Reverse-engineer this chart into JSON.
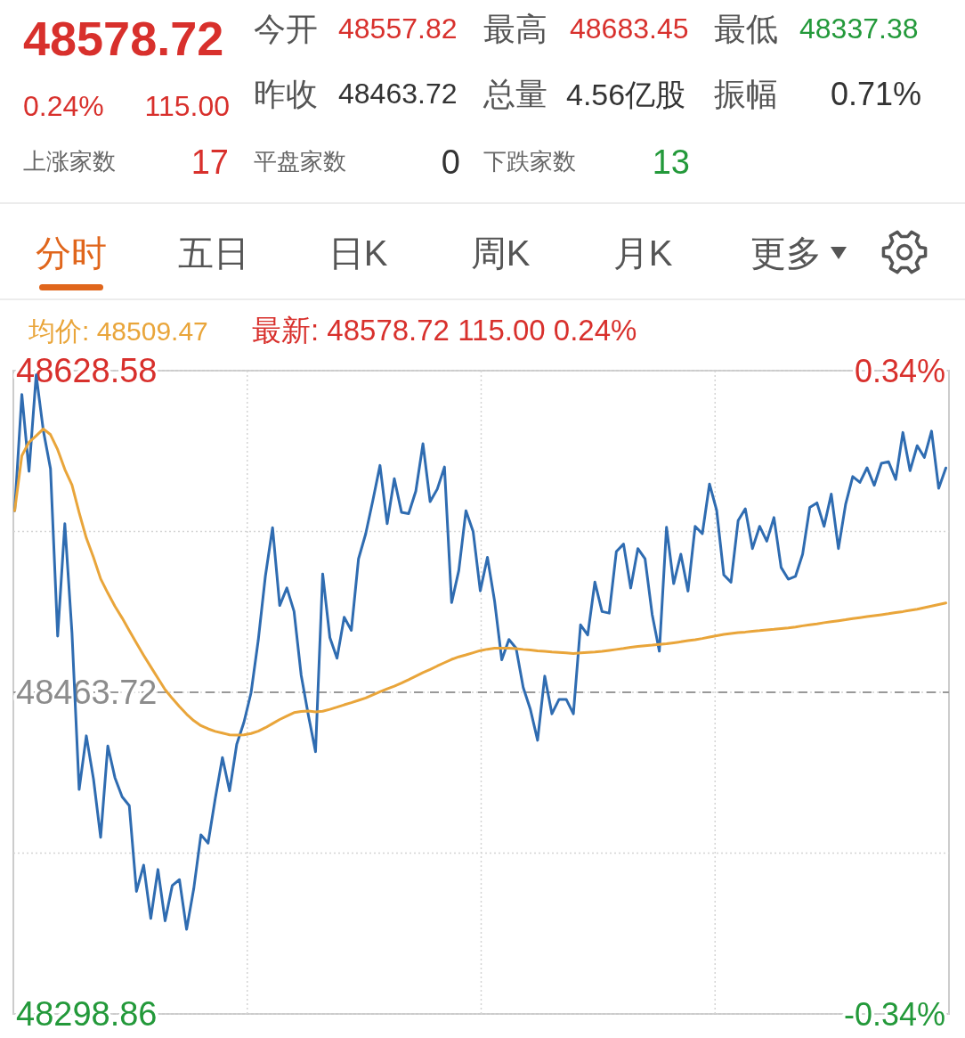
{
  "chart_data": [
    {
      "type": "other",
      "title": "48578.72",
      "annotations": [
        "0.24%",
        "115.00",
        "今开",
        "48557.82",
        "最高",
        "48683.45",
        "最低",
        "48337.38",
        "昨收",
        "48463.72",
        "总量",
        "4.56亿股",
        "振幅",
        "0.71%",
        "上涨家数",
        "17",
        "平盘家数",
        "0",
        "下跌家数",
        "13",
        "分时",
        "五日",
        "日K",
        "周K",
        "月K",
        "更多"
      ]
    },
    {
      "type": "line",
      "categories": [
        null,
        null,
        null,
        null,
        null,
        null,
        null,
        null,
        null,
        null,
        null,
        null,
        null,
        null,
        null,
        null,
        null,
        null,
        null,
        null,
        null,
        null,
        null,
        null,
        null,
        null,
        null,
        null,
        null,
        null,
        null,
        null,
        null,
        null,
        null,
        null,
        null,
        null,
        null,
        null,
        null,
        null,
        null,
        null,
        null,
        null,
        null,
        null,
        null,
        null,
        null,
        null,
        null,
        null,
        null,
        null,
        null,
        null,
        null,
        null,
        null,
        null,
        null,
        null,
        null,
        null,
        null,
        null,
        null,
        null,
        null,
        null,
        null,
        null,
        null,
        null,
        null,
        null,
        null,
        null,
        null,
        null,
        null,
        null,
        null,
        null,
        null,
        null,
        null,
        null,
        null,
        null,
        null,
        null,
        null,
        null,
        null,
        null,
        null,
        null,
        null,
        null,
        null,
        null,
        null,
        null,
        null,
        null,
        null,
        null,
        null,
        null,
        null,
        null,
        null,
        null,
        null,
        null,
        null,
        null,
        null,
        null,
        null,
        null,
        null,
        null,
        null,
        null,
        null,
        null,
        null
      ],
      "ylim": [
        48298.86,
        48628.58
      ],
      "yticks": [
        48298.86,
        {
          "value": 48381.29,
          "label": null
        },
        48463.72,
        {
          "value": 48546.15,
          "label": null
        },
        48628.58
      ],
      "y2lim": [
        -0.34,
        0.34
      ],
      "y2ticks": [
        {
          "value": -0.34,
          "label": "-0.34%"
        },
        {
          "value": 0.34,
          "label": "0.34%"
        }
      ],
      "tick_labels": "y",
      "grid": true,
      "ref_lines": [
        {
          "axis": "y",
          "value": 48463.72,
          "color": "#999999",
          "line_style": "dashed"
        }
      ],
      "annotations": [
        "最新: 48578.72 115.00 0.24%"
      ],
      "series": [
        {
          "color": "#2f6cb1",
          "values": [
            48556.8,
            48616.4,
            48577.0,
            48626.4,
            48597.8,
            48578.3,
            48492.5,
            48550.1,
            48494.0,
            48413.9,
            48441.4,
            48419.3,
            48389.4,
            48436.2,
            48419.9,
            48410.2,
            48405.6,
            48361.7,
            48375.1,
            48347.8,
            48372.9,
            48346.6,
            48364.7,
            48367.7,
            48342.2,
            48363.1,
            48390.7,
            48386.4,
            48409.3,
            48430.3,
            48413.2,
            48437.1,
            48448.3,
            48463.5,
            48490.3,
            48523.3,
            48548.1,
            48508.2,
            48517.2,
            48505.2,
            48472.4,
            48452.0,
            48433.3,
            48524.4,
            48491.8,
            48481.2,
            48502.2,
            48495.5,
            48532.1,
            48544.9,
            48562.0,
            48580.0,
            48550.1,
            48573.2,
            48556.0,
            48555.3,
            48566.8,
            48591.1,
            48561.4,
            48567.9,
            48579.2,
            48509.7,
            48526.1,
            48556.8,
            48546.2,
            48515.7,
            48532.9,
            48510.4,
            48480.4,
            48490.8,
            48486.3,
            48466.1,
            48454.9,
            48439.1,
            48472.0,
            48452.7,
            48460.1,
            48460.1,
            48452.7,
            48498.3,
            48493.1,
            48520.2,
            48505.1,
            48504.3,
            48535.9,
            48539.7,
            48517.2,
            48537.4,
            48532.2,
            48503.6,
            48484.8,
            48548.3,
            48519.4,
            48534.5,
            48515.6,
            48548.8,
            48545.0,
            48570.5,
            48557.0,
            48523.9,
            48520.2,
            48551.7,
            48557.8,
            48537.4,
            48548.8,
            48541.2,
            48553.3,
            48527.7,
            48521.7,
            48523.1,
            48534.5,
            48558.5,
            48560.8,
            48548.8,
            48565.3,
            48537.4,
            48560.0,
            48574.3,
            48571.3,
            48578.8,
            48569.8,
            48581.1,
            48581.9,
            48572.8,
            48596.9,
            48577.3,
            48590.1,
            48584.1,
            48597.6,
            48568.3,
            48578.72
          ]
        },
        {
          "name": "均价: 48509.47",
          "color": "#e9a53a",
          "values": [
            48556.8,
            48585.0,
            48591.9,
            48595.2,
            48598.7,
            48595.8,
            48588.1,
            48578.0,
            48569.9,
            48555.8,
            48542.8,
            48532.9,
            48521.9,
            48514.6,
            48507.8,
            48501.8,
            48495.4,
            48488.9,
            48482.7,
            48476.8,
            48470.9,
            48465.1,
            48460.6,
            48456.4,
            48452.5,
            48449.2,
            48446.6,
            48445.0,
            48443.7,
            48442.8,
            48441.9,
            48441.8,
            48441.9,
            48442.6,
            48443.8,
            48445.6,
            48447.7,
            48449.8,
            48451.6,
            48453.3,
            48453.9,
            48454.1,
            48453.7,
            48454.0,
            48455.0,
            48456.1,
            48457.3,
            48458.4,
            48459.6,
            48460.8,
            48462.4,
            48464.0,
            48465.5,
            48466.9,
            48468.5,
            48470.2,
            48472.0,
            48473.8,
            48475.4,
            48477.2,
            48478.9,
            48480.6,
            48481.9,
            48482.9,
            48484.0,
            48485.1,
            48485.8,
            48486.3,
            48486.3,
            48486.3,
            48486.1,
            48485.7,
            48485.4,
            48485.0,
            48484.7,
            48484.4,
            48484.2,
            48483.9,
            48483.6,
            48483.9,
            48484.2,
            48484.4,
            48484.7,
            48485.2,
            48485.7,
            48486.2,
            48486.8,
            48487.2,
            48487.6,
            48487.9,
            48488.3,
            48488.6,
            48489.1,
            48489.6,
            48490.2,
            48490.7,
            48491.3,
            48492.0,
            48492.7,
            48493.4,
            48493.9,
            48494.3,
            48494.6,
            48495.0,
            48495.3,
            48495.7,
            48496.0,
            48496.4,
            48496.7,
            48497.2,
            48497.8,
            48498.3,
            48498.8,
            48499.4,
            48499.9,
            48500.4,
            48500.9,
            48501.5,
            48502.0,
            48502.5,
            48503.0,
            48503.5,
            48504.0,
            48504.6,
            48505.1,
            48505.7,
            48506.3,
            48507.1,
            48507.9,
            48508.7,
            48509.47
          ]
        }
      ]
    }
  ]
}
